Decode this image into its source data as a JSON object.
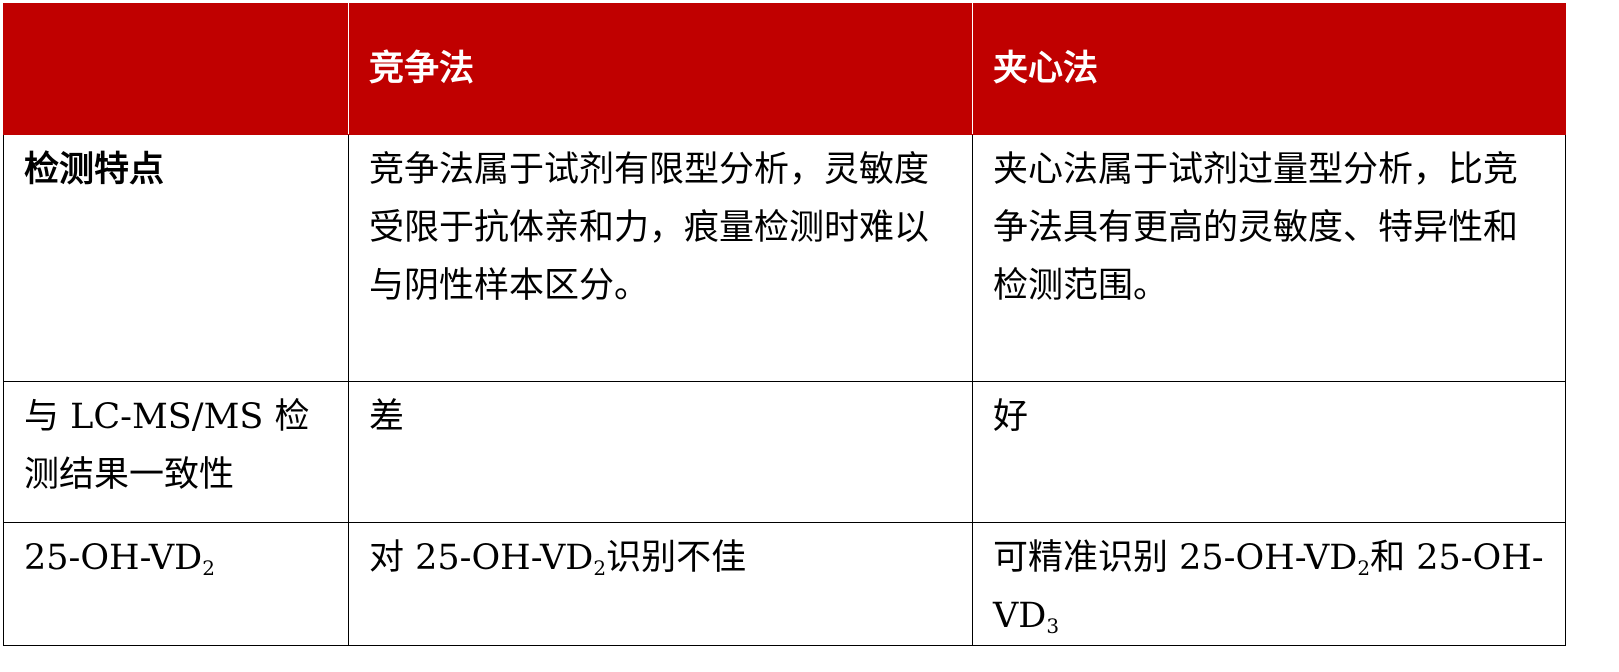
{
  "header": {
    "col0": "",
    "col1": "竞争法",
    "col2": "夹心法"
  },
  "rows": [
    {
      "label": "检测特点",
      "competitive": "竞争法属于试剂有限型分析，灵敏度受限于抗体亲和力，痕量检测时难以与阴性样本区分。",
      "sandwich": "夹心法属于试剂过量型分析，比竞争法具有更高的灵敏度、特异性和检测范围。"
    },
    {
      "label": "与 LC-MS/MS 检测结果一致性",
      "competitive": "差",
      "sandwich": "好"
    },
    {
      "label": {
        "pre": "25-OH-VD",
        "sub": "2"
      },
      "competitive": {
        "pre": "对 25-OH-VD",
        "sub": "2",
        "post": "识别不佳"
      },
      "sandwich": {
        "pre": "可精准识别 25-OH-VD",
        "sub": "2",
        "mid": "和 25-OH-VD",
        "sub2": "3"
      }
    }
  ],
  "colors": {
    "header_bg": "#C00000",
    "header_text": "#FFFFFF"
  }
}
